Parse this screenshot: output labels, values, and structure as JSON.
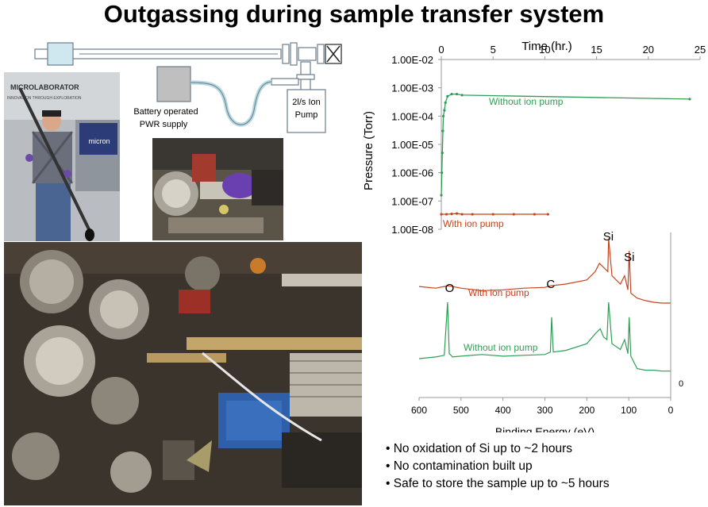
{
  "title": "Outgassing during sample transfer system",
  "schematic": {
    "supply_label_line1": "Battery operated",
    "supply_label_line2": "PWR supply",
    "pump_label_line1": "2l/s Ion",
    "pump_label_line2": "Pump"
  },
  "photos": {
    "person_badge_1": "MICROLABORATOR",
    "person_badge_2": "INNOVATION THROUGH EXPLORATION",
    "person_sign": "micron"
  },
  "pressure_chart": {
    "chart_data": {
      "type": "scatter",
      "xlabel": "Time (hr.)",
      "ylabel": "Pressure (Torr)",
      "x_ticks": [
        0,
        5,
        10,
        15,
        20,
        25
      ],
      "y_ticks": [
        "1.00E-02",
        "1.00E-03",
        "1.00E-04",
        "1.00E-05",
        "1.00E-06",
        "1.00E-07",
        "1.00E-08"
      ],
      "xlim": [
        0,
        25
      ],
      "ylim": [
        1e-08,
        0.01
      ],
      "y_scale": "log",
      "series": [
        {
          "name": "Without ion pump",
          "color": "#2e9e55",
          "x": [
            0,
            0.05,
            0.1,
            0.15,
            0.2,
            0.3,
            0.4,
            0.6,
            1.0,
            1.5,
            2.0,
            24
          ],
          "y": [
            1.6e-07,
            1e-06,
            5e-06,
            3e-05,
            0.0001,
            0.00016,
            0.0003,
            0.0005,
            0.0006,
            0.0006,
            0.00055,
            0.0004
          ]
        },
        {
          "name": "With ion pump",
          "color": "#c8421c",
          "x": [
            0,
            0.5,
            1,
            1.5,
            2,
            3,
            5,
            7,
            9,
            10.3
          ],
          "y": [
            3.4e-08,
            3.4e-08,
            3.5e-08,
            3.6e-08,
            3.4e-08,
            3.4e-08,
            3.4e-08,
            3.4e-08,
            3.4e-08,
            3.4e-08
          ]
        }
      ]
    }
  },
  "xps_chart": {
    "chart_data": {
      "type": "line",
      "xlabel": "Binding Energy (eV)",
      "x_ticks": [
        600,
        500,
        400,
        300,
        200,
        100,
        0
      ],
      "xlim": [
        600,
        0
      ],
      "y_zero_label": "0",
      "series": [
        {
          "name": "With ion pump",
          "color": "#c8421c",
          "x": [
            600,
            560,
            540,
            530,
            500,
            450,
            400,
            350,
            300,
            285,
            250,
            200,
            180,
            170,
            160,
            150,
            148,
            140,
            120,
            110,
            102,
            99,
            95,
            80,
            60,
            40,
            20,
            0
          ],
          "y": [
            0.42,
            0.4,
            0.42,
            0.43,
            0.4,
            0.37,
            0.38,
            0.4,
            0.41,
            0.43,
            0.45,
            0.5,
            0.6,
            0.7,
            0.65,
            0.6,
            1.0,
            0.55,
            0.45,
            0.55,
            0.38,
            0.85,
            0.34,
            0.28,
            0.25,
            0.23,
            0.22,
            0.22
          ],
          "annotations": [
            {
              "text": "O",
              "x": 527
            },
            {
              "text": "C",
              "x": 285
            },
            {
              "text": "Si",
              "x": 150
            },
            {
              "text": "Si",
              "x": 100
            }
          ]
        },
        {
          "name": "Without ion pump",
          "color": "#2e9e55",
          "x": [
            600,
            560,
            540,
            532,
            528,
            520,
            500,
            450,
            400,
            350,
            300,
            287,
            284,
            280,
            250,
            200,
            180,
            168,
            160,
            152,
            148,
            140,
            120,
            110,
            102,
            99,
            95,
            80,
            60,
            40,
            20,
            0
          ],
          "y": [
            0.22,
            0.24,
            0.26,
            0.9,
            0.28,
            0.24,
            0.25,
            0.27,
            0.25,
            0.26,
            0.27,
            0.3,
            0.72,
            0.3,
            0.32,
            0.4,
            0.52,
            0.58,
            0.48,
            0.45,
            0.9,
            0.4,
            0.33,
            0.45,
            0.28,
            0.72,
            0.25,
            0.1,
            0.08,
            0.08,
            0.07,
            0.07
          ]
        }
      ]
    }
  },
  "bullets": [
    "No oxidation of Si up to ~2 hours",
    "No contamination built up",
    "Safe to store the sample up to ~5 hours"
  ]
}
